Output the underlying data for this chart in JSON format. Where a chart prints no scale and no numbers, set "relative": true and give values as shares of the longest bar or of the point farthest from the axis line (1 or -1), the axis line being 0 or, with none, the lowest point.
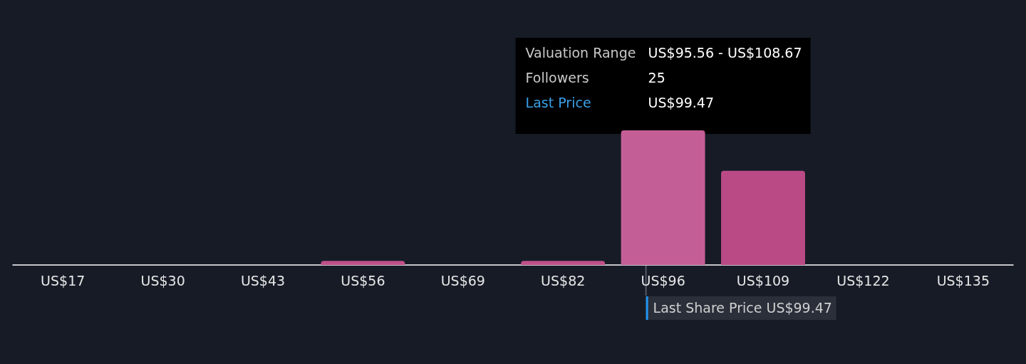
{
  "chart_data": {
    "type": "bar",
    "relative": true,
    "categories": [
      "US$17",
      "US$30",
      "US$43",
      "US$56",
      "US$69",
      "US$82",
      "US$96",
      "US$109",
      "US$122",
      "US$135"
    ],
    "values": [
      0,
      0,
      0,
      0.03,
      0,
      0.03,
      1,
      0.7,
      0,
      0
    ],
    "colors": [
      "#c0508a",
      "#c0508a",
      "#c0508a",
      "#c0508a",
      "#c0508a",
      "#c0508a",
      "#c45e96",
      "#b94a86",
      "#c0508a",
      "#c0508a"
    ],
    "annotations": [
      "Valuation Range",
      "US$95.56 - US$108.67",
      "Followers",
      "25",
      "Last Price",
      "US$99.47",
      "Last Share Price US$99.47"
    ],
    "grid": false
  }
}
